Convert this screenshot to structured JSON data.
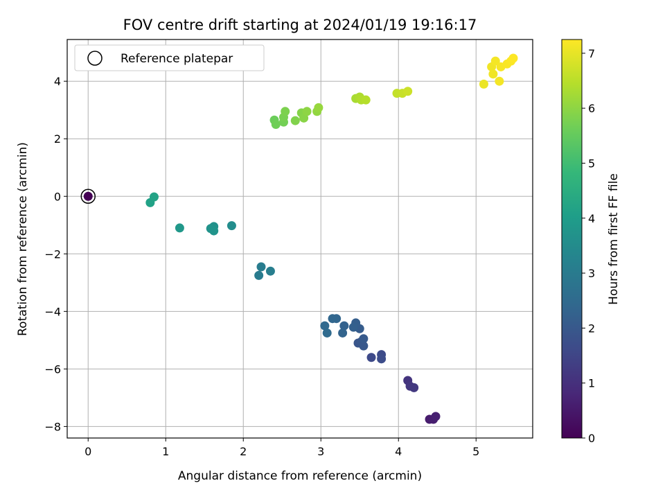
{
  "chart_data": {
    "type": "scatter",
    "title": "FOV centre drift starting at 2024/01/19 19:16:17",
    "xlabel": "Angular distance from reference (arcmin)",
    "ylabel": "Rotation from reference (arcmin)",
    "xlim": [
      -0.27,
      5.73
    ],
    "ylim": [
      -8.4,
      5.45
    ],
    "x_ticks": [
      0,
      1,
      2,
      3,
      4,
      5
    ],
    "y_ticks": [
      -8,
      -6,
      -4,
      -2,
      0,
      2,
      4
    ],
    "grid": true,
    "legend": {
      "position": "top-left",
      "entries": [
        "Reference platepar"
      ]
    },
    "colorbar": {
      "label": "Hours from first FF file",
      "range": [
        0,
        7.25
      ],
      "ticks": [
        0,
        1,
        2,
        3,
        4,
        5,
        6,
        7
      ],
      "colormap": "viridis"
    },
    "reference_point": {
      "x": 0,
      "y": 0
    },
    "points": [
      {
        "x": 0.0,
        "y": 0.0,
        "c": 0.0
      },
      {
        "x": 4.4,
        "y": -7.75,
        "c": 0.55
      },
      {
        "x": 4.45,
        "y": -7.75,
        "c": 0.6
      },
      {
        "x": 4.48,
        "y": -7.65,
        "c": 0.65
      },
      {
        "x": 4.12,
        "y": -6.4,
        "c": 1.1
      },
      {
        "x": 4.15,
        "y": -6.6,
        "c": 1.15
      },
      {
        "x": 4.2,
        "y": -6.65,
        "c": 1.2
      },
      {
        "x": 3.65,
        "y": -5.6,
        "c": 1.6
      },
      {
        "x": 3.78,
        "y": -5.5,
        "c": 1.65
      },
      {
        "x": 3.78,
        "y": -5.65,
        "c": 1.7
      },
      {
        "x": 3.48,
        "y": -5.1,
        "c": 1.9
      },
      {
        "x": 3.52,
        "y": -5.05,
        "c": 1.95
      },
      {
        "x": 3.55,
        "y": -5.2,
        "c": 2.0
      },
      {
        "x": 3.55,
        "y": -4.95,
        "c": 2.05
      },
      {
        "x": 3.5,
        "y": -4.6,
        "c": 2.1
      },
      {
        "x": 3.45,
        "y": -4.4,
        "c": 2.15
      },
      {
        "x": 3.42,
        "y": -4.55,
        "c": 2.2
      },
      {
        "x": 3.3,
        "y": -4.5,
        "c": 2.25
      },
      {
        "x": 3.28,
        "y": -4.75,
        "c": 2.3
      },
      {
        "x": 3.2,
        "y": -4.25,
        "c": 2.35
      },
      {
        "x": 3.15,
        "y": -4.25,
        "c": 2.4
      },
      {
        "x": 3.05,
        "y": -4.5,
        "c": 2.45
      },
      {
        "x": 3.08,
        "y": -4.75,
        "c": 2.5
      },
      {
        "x": 2.2,
        "y": -2.75,
        "c": 3.0
      },
      {
        "x": 2.23,
        "y": -2.45,
        "c": 3.05
      },
      {
        "x": 2.35,
        "y": -2.6,
        "c": 3.1
      },
      {
        "x": 1.85,
        "y": -1.02,
        "c": 3.55
      },
      {
        "x": 1.62,
        "y": -1.05,
        "c": 3.65
      },
      {
        "x": 1.58,
        "y": -1.12,
        "c": 3.7
      },
      {
        "x": 1.62,
        "y": -1.2,
        "c": 3.75
      },
      {
        "x": 1.18,
        "y": -1.1,
        "c": 3.85
      },
      {
        "x": 0.8,
        "y": -0.22,
        "c": 4.15
      },
      {
        "x": 0.85,
        "y": -0.02,
        "c": 4.2
      },
      {
        "x": 2.4,
        "y": 2.65,
        "c": 5.6
      },
      {
        "x": 2.42,
        "y": 2.5,
        "c": 5.65
      },
      {
        "x": 2.52,
        "y": 2.58,
        "c": 5.7
      },
      {
        "x": 2.52,
        "y": 2.75,
        "c": 5.75
      },
      {
        "x": 2.54,
        "y": 2.95,
        "c": 5.8
      },
      {
        "x": 2.67,
        "y": 2.63,
        "c": 5.85
      },
      {
        "x": 2.75,
        "y": 2.9,
        "c": 5.9
      },
      {
        "x": 2.78,
        "y": 2.72,
        "c": 5.95
      },
      {
        "x": 2.82,
        "y": 2.95,
        "c": 6.0
      },
      {
        "x": 2.95,
        "y": 2.95,
        "c": 6.05
      },
      {
        "x": 2.97,
        "y": 3.08,
        "c": 6.1
      },
      {
        "x": 3.45,
        "y": 3.4,
        "c": 6.3
      },
      {
        "x": 3.5,
        "y": 3.45,
        "c": 6.35
      },
      {
        "x": 3.52,
        "y": 3.35,
        "c": 6.4
      },
      {
        "x": 3.58,
        "y": 3.35,
        "c": 6.45
      },
      {
        "x": 3.98,
        "y": 3.58,
        "c": 6.6
      },
      {
        "x": 4.05,
        "y": 3.58,
        "c": 6.65
      },
      {
        "x": 4.12,
        "y": 3.65,
        "c": 6.7
      },
      {
        "x": 5.1,
        "y": 3.9,
        "c": 7.05
      },
      {
        "x": 5.2,
        "y": 4.5,
        "c": 7.1
      },
      {
        "x": 5.22,
        "y": 4.25,
        "c": 7.1
      },
      {
        "x": 5.25,
        "y": 4.7,
        "c": 7.15
      },
      {
        "x": 5.3,
        "y": 4.0,
        "c": 7.15
      },
      {
        "x": 5.32,
        "y": 4.5,
        "c": 7.18
      },
      {
        "x": 5.4,
        "y": 4.6,
        "c": 7.2
      },
      {
        "x": 5.45,
        "y": 4.7,
        "c": 7.22
      },
      {
        "x": 5.48,
        "y": 4.8,
        "c": 7.25
      }
    ]
  }
}
